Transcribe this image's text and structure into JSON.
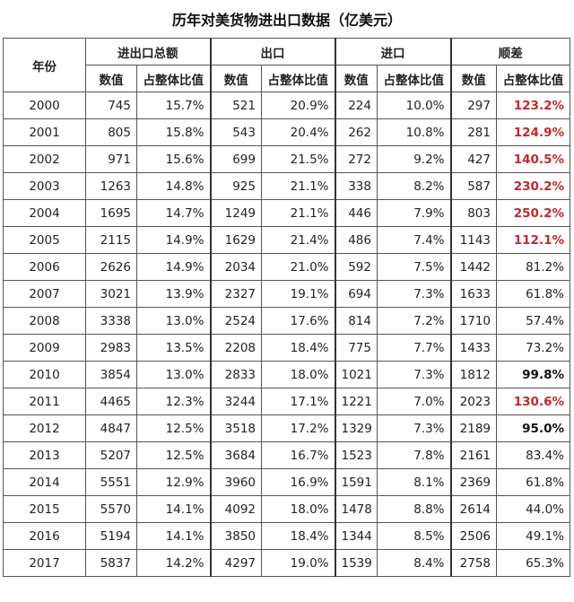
{
  "title": "历年对美货物进出口数据（亿美元）",
  "headers": {
    "year": "年份",
    "total": "进出口总额",
    "export": "出口",
    "import": "进口",
    "balance": "顺差",
    "value": "数值",
    "ratio": "占整体比值"
  },
  "rows": [
    {
      "year": "2000",
      "total": "745",
      "total_r": "15.7%",
      "exp": "521",
      "exp_r": "20.9%",
      "imp": "224",
      "imp_r": "10.0%",
      "bal": "297",
      "bal_r": "123.2%",
      "style": "red"
    },
    {
      "year": "2001",
      "total": "805",
      "total_r": "15.8%",
      "exp": "543",
      "exp_r": "20.4%",
      "imp": "262",
      "imp_r": "10.8%",
      "bal": "281",
      "bal_r": "124.9%",
      "style": "red"
    },
    {
      "year": "2002",
      "total": "971",
      "total_r": "15.6%",
      "exp": "699",
      "exp_r": "21.5%",
      "imp": "272",
      "imp_r": "9.2%",
      "bal": "427",
      "bal_r": "140.5%",
      "style": "red"
    },
    {
      "year": "2003",
      "total": "1263",
      "total_r": "14.8%",
      "exp": "925",
      "exp_r": "21.1%",
      "imp": "338",
      "imp_r": "8.2%",
      "bal": "587",
      "bal_r": "230.2%",
      "style": "red"
    },
    {
      "year": "2004",
      "total": "1695",
      "total_r": "14.7%",
      "exp": "1249",
      "exp_r": "21.1%",
      "imp": "446",
      "imp_r": "7.9%",
      "bal": "803",
      "bal_r": "250.2%",
      "style": "red"
    },
    {
      "year": "2005",
      "total": "2115",
      "total_r": "14.9%",
      "exp": "1629",
      "exp_r": "21.4%",
      "imp": "486",
      "imp_r": "7.4%",
      "bal": "1143",
      "bal_r": "112.1%",
      "style": "red"
    },
    {
      "year": "2006",
      "total": "2626",
      "total_r": "14.9%",
      "exp": "2034",
      "exp_r": "21.0%",
      "imp": "592",
      "imp_r": "7.5%",
      "bal": "1442",
      "bal_r": "81.2%",
      "style": ""
    },
    {
      "year": "2007",
      "total": "3021",
      "total_r": "13.9%",
      "exp": "2327",
      "exp_r": "19.1%",
      "imp": "694",
      "imp_r": "7.3%",
      "bal": "1633",
      "bal_r": "61.8%",
      "style": ""
    },
    {
      "year": "2008",
      "total": "3338",
      "total_r": "13.0%",
      "exp": "2524",
      "exp_r": "17.6%",
      "imp": "814",
      "imp_r": "7.2%",
      "bal": "1710",
      "bal_r": "57.4%",
      "style": ""
    },
    {
      "year": "2009",
      "total": "2983",
      "total_r": "13.5%",
      "exp": "2208",
      "exp_r": "18.4%",
      "imp": "775",
      "imp_r": "7.7%",
      "bal": "1433",
      "bal_r": "73.2%",
      "style": ""
    },
    {
      "year": "2010",
      "total": "3854",
      "total_r": "13.0%",
      "exp": "2833",
      "exp_r": "18.0%",
      "imp": "1021",
      "imp_r": "7.3%",
      "bal": "1812",
      "bal_r": "99.8%",
      "style": "bold"
    },
    {
      "year": "2011",
      "total": "4465",
      "total_r": "12.3%",
      "exp": "3244",
      "exp_r": "17.1%",
      "imp": "1221",
      "imp_r": "7.0%",
      "bal": "2023",
      "bal_r": "130.6%",
      "style": "red"
    },
    {
      "year": "2012",
      "total": "4847",
      "total_r": "12.5%",
      "exp": "3518",
      "exp_r": "17.2%",
      "imp": "1329",
      "imp_r": "7.3%",
      "bal": "2189",
      "bal_r": "95.0%",
      "style": "bold"
    },
    {
      "year": "2013",
      "total": "5207",
      "total_r": "12.5%",
      "exp": "3684",
      "exp_r": "16.7%",
      "imp": "1523",
      "imp_r": "7.8%",
      "bal": "2161",
      "bal_r": "83.4%",
      "style": ""
    },
    {
      "year": "2014",
      "total": "5551",
      "total_r": "12.9%",
      "exp": "3960",
      "exp_r": "16.9%",
      "imp": "1591",
      "imp_r": "8.1%",
      "bal": "2369",
      "bal_r": "61.8%",
      "style": ""
    },
    {
      "year": "2015",
      "total": "5570",
      "total_r": "14.1%",
      "exp": "4092",
      "exp_r": "18.0%",
      "imp": "1478",
      "imp_r": "8.8%",
      "bal": "2614",
      "bal_r": "44.0%",
      "style": ""
    },
    {
      "year": "2016",
      "total": "5194",
      "total_r": "14.1%",
      "exp": "3850",
      "exp_r": "18.4%",
      "imp": "1344",
      "imp_r": "8.5%",
      "bal": "2506",
      "bal_r": "49.1%",
      "style": ""
    },
    {
      "year": "2017",
      "total": "5837",
      "total_r": "14.2%",
      "exp": "4297",
      "exp_r": "19.0%",
      "imp": "1539",
      "imp_r": "8.4%",
      "bal": "2758",
      "bal_r": "65.3%",
      "style": ""
    }
  ],
  "colors": {
    "highlight_red": "#c0282d",
    "border": "#555555"
  }
}
